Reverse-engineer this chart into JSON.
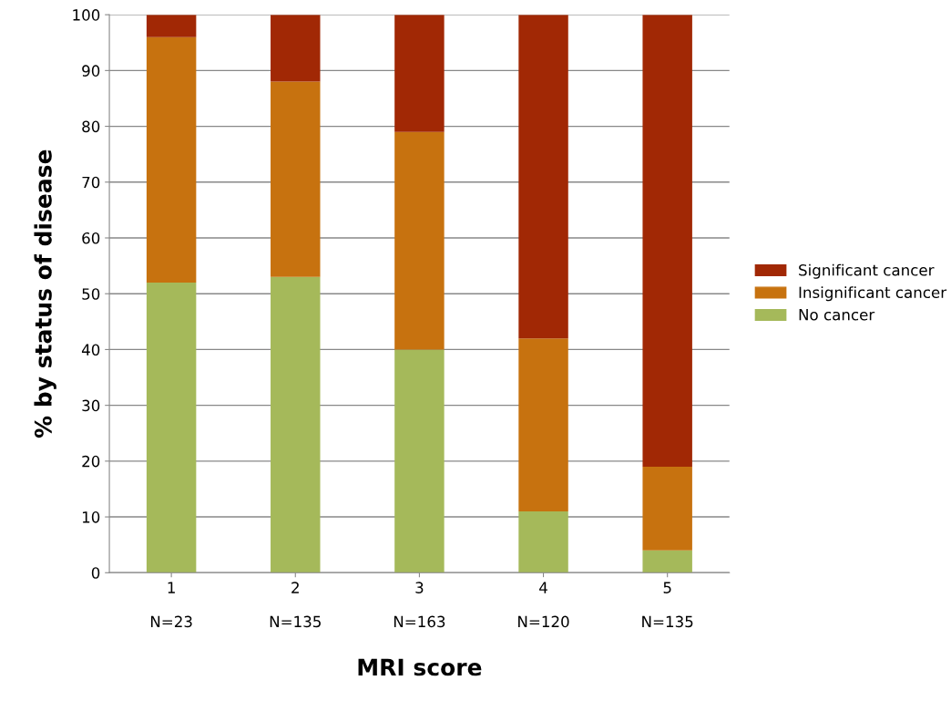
{
  "chart_data": {
    "type": "bar",
    "stacked": true,
    "xlabel": "MRI score",
    "ylabel": "% by status of disease",
    "categories": [
      "1\n\nN=23",
      "2\n\nN=135",
      "3\n\nN=163",
      "4\n\nN=120",
      "5\n\nN=135"
    ],
    "series": [
      {
        "name": "No cancer",
        "color": "#a5b95a",
        "values": [
          52,
          53,
          40,
          11,
          4
        ]
      },
      {
        "name": "Insignificant cancer",
        "color": "#c7720f",
        "values": [
          44,
          35,
          39,
          31,
          15
        ]
      },
      {
        "name": "Significant cancer",
        "color": "#a12805",
        "values": [
          4,
          12,
          21,
          58,
          81
        ]
      }
    ],
    "ylim": [
      0,
      100
    ],
    "yticks": [
      0,
      10,
      20,
      30,
      40,
      50,
      60,
      70,
      80,
      90,
      100
    ],
    "grid": "y",
    "legend": "right"
  }
}
